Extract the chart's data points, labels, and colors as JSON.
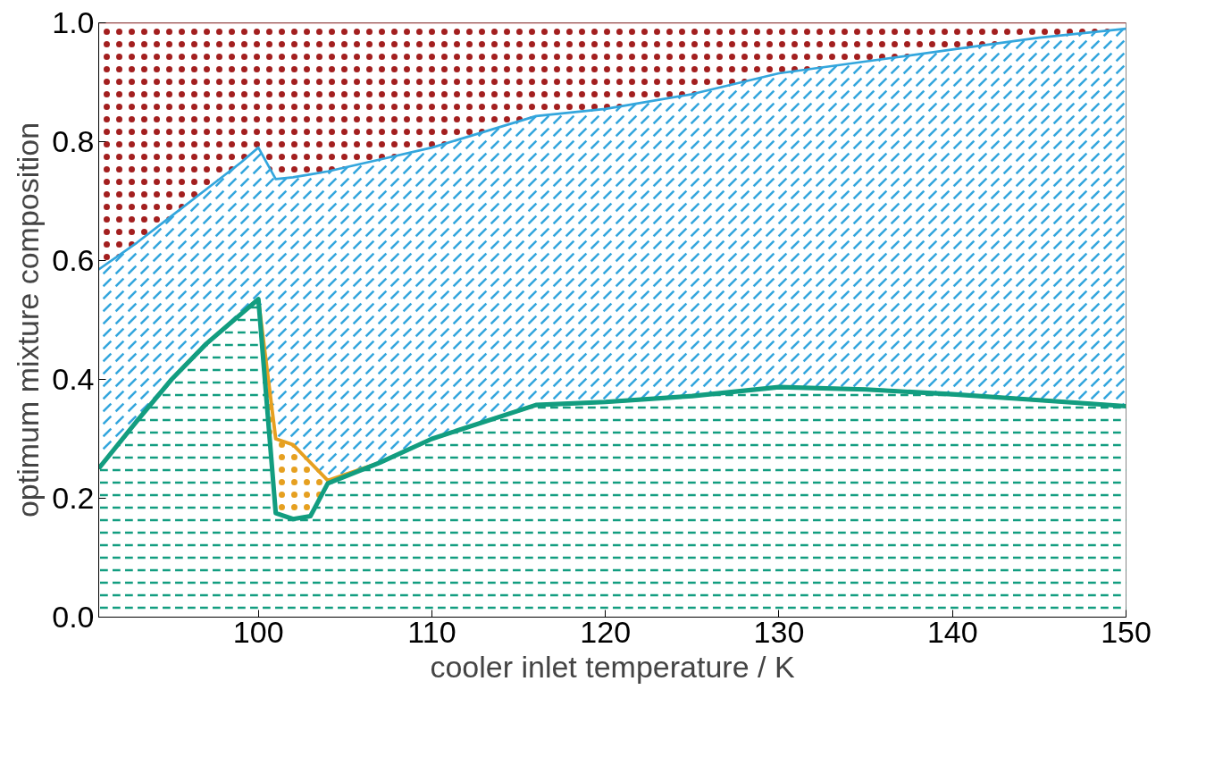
{
  "chart_data": {
    "type": "area",
    "stacked": true,
    "xlabel": "cooler inlet temperature / K",
    "ylabel": "optimum mixture composition",
    "x": [
      90.8,
      93,
      95,
      97,
      99,
      100,
      101,
      102,
      103,
      104,
      107,
      110,
      116,
      120,
      125,
      130,
      135,
      140,
      145,
      150
    ],
    "series": [
      {
        "color": "#129d80",
        "values": [
          0.25,
          0.33,
          0.4,
          0.46,
          0.51,
          0.535,
          0.175,
          0.165,
          0.17,
          0.225,
          0.26,
          0.3,
          0.357,
          0.362,
          0.372,
          0.387,
          0.383,
          0.375,
          0.365,
          0.355
        ]
      },
      {
        "color": "#e6a020",
        "values": [
          0,
          0,
          0,
          0,
          0,
          0,
          0.125,
          0.125,
          0.09,
          0.005,
          0,
          0,
          0,
          0,
          0,
          0,
          0,
          0,
          0,
          0
        ]
      },
      {
        "color": "#33a6dd",
        "values": [
          0.335,
          0.3,
          0.275,
          0.26,
          0.255,
          0.255,
          0.437,
          0.45,
          0.485,
          0.52,
          0.51,
          0.49,
          0.486,
          0.493,
          0.508,
          0.528,
          0.552,
          0.58,
          0.61,
          0.635
        ]
      },
      {
        "color": "#a31f1f",
        "values": [
          0.415,
          0.37,
          0.325,
          0.28,
          0.235,
          0.21,
          0.263,
          0.26,
          0.255,
          0.25,
          0.23,
          0.21,
          0.157,
          0.145,
          0.12,
          0.085,
          0.065,
          0.045,
          0.025,
          0.01
        ]
      }
    ],
    "xlim": [
      90.8,
      150
    ],
    "ylim": [
      0,
      1
    ],
    "xticks": [
      100,
      110,
      120,
      130,
      140,
      150
    ],
    "yticks": [
      {
        "value": 0,
        "label": "0.0"
      },
      {
        "value": 0.2,
        "label": "0.2"
      },
      {
        "value": 0.4,
        "label": "0.4"
      },
      {
        "value": 0.6,
        "label": "0.6"
      },
      {
        "value": 0.8,
        "label": "0.8"
      },
      {
        "value": 1,
        "label": "1.0"
      }
    ],
    "grid": false
  }
}
